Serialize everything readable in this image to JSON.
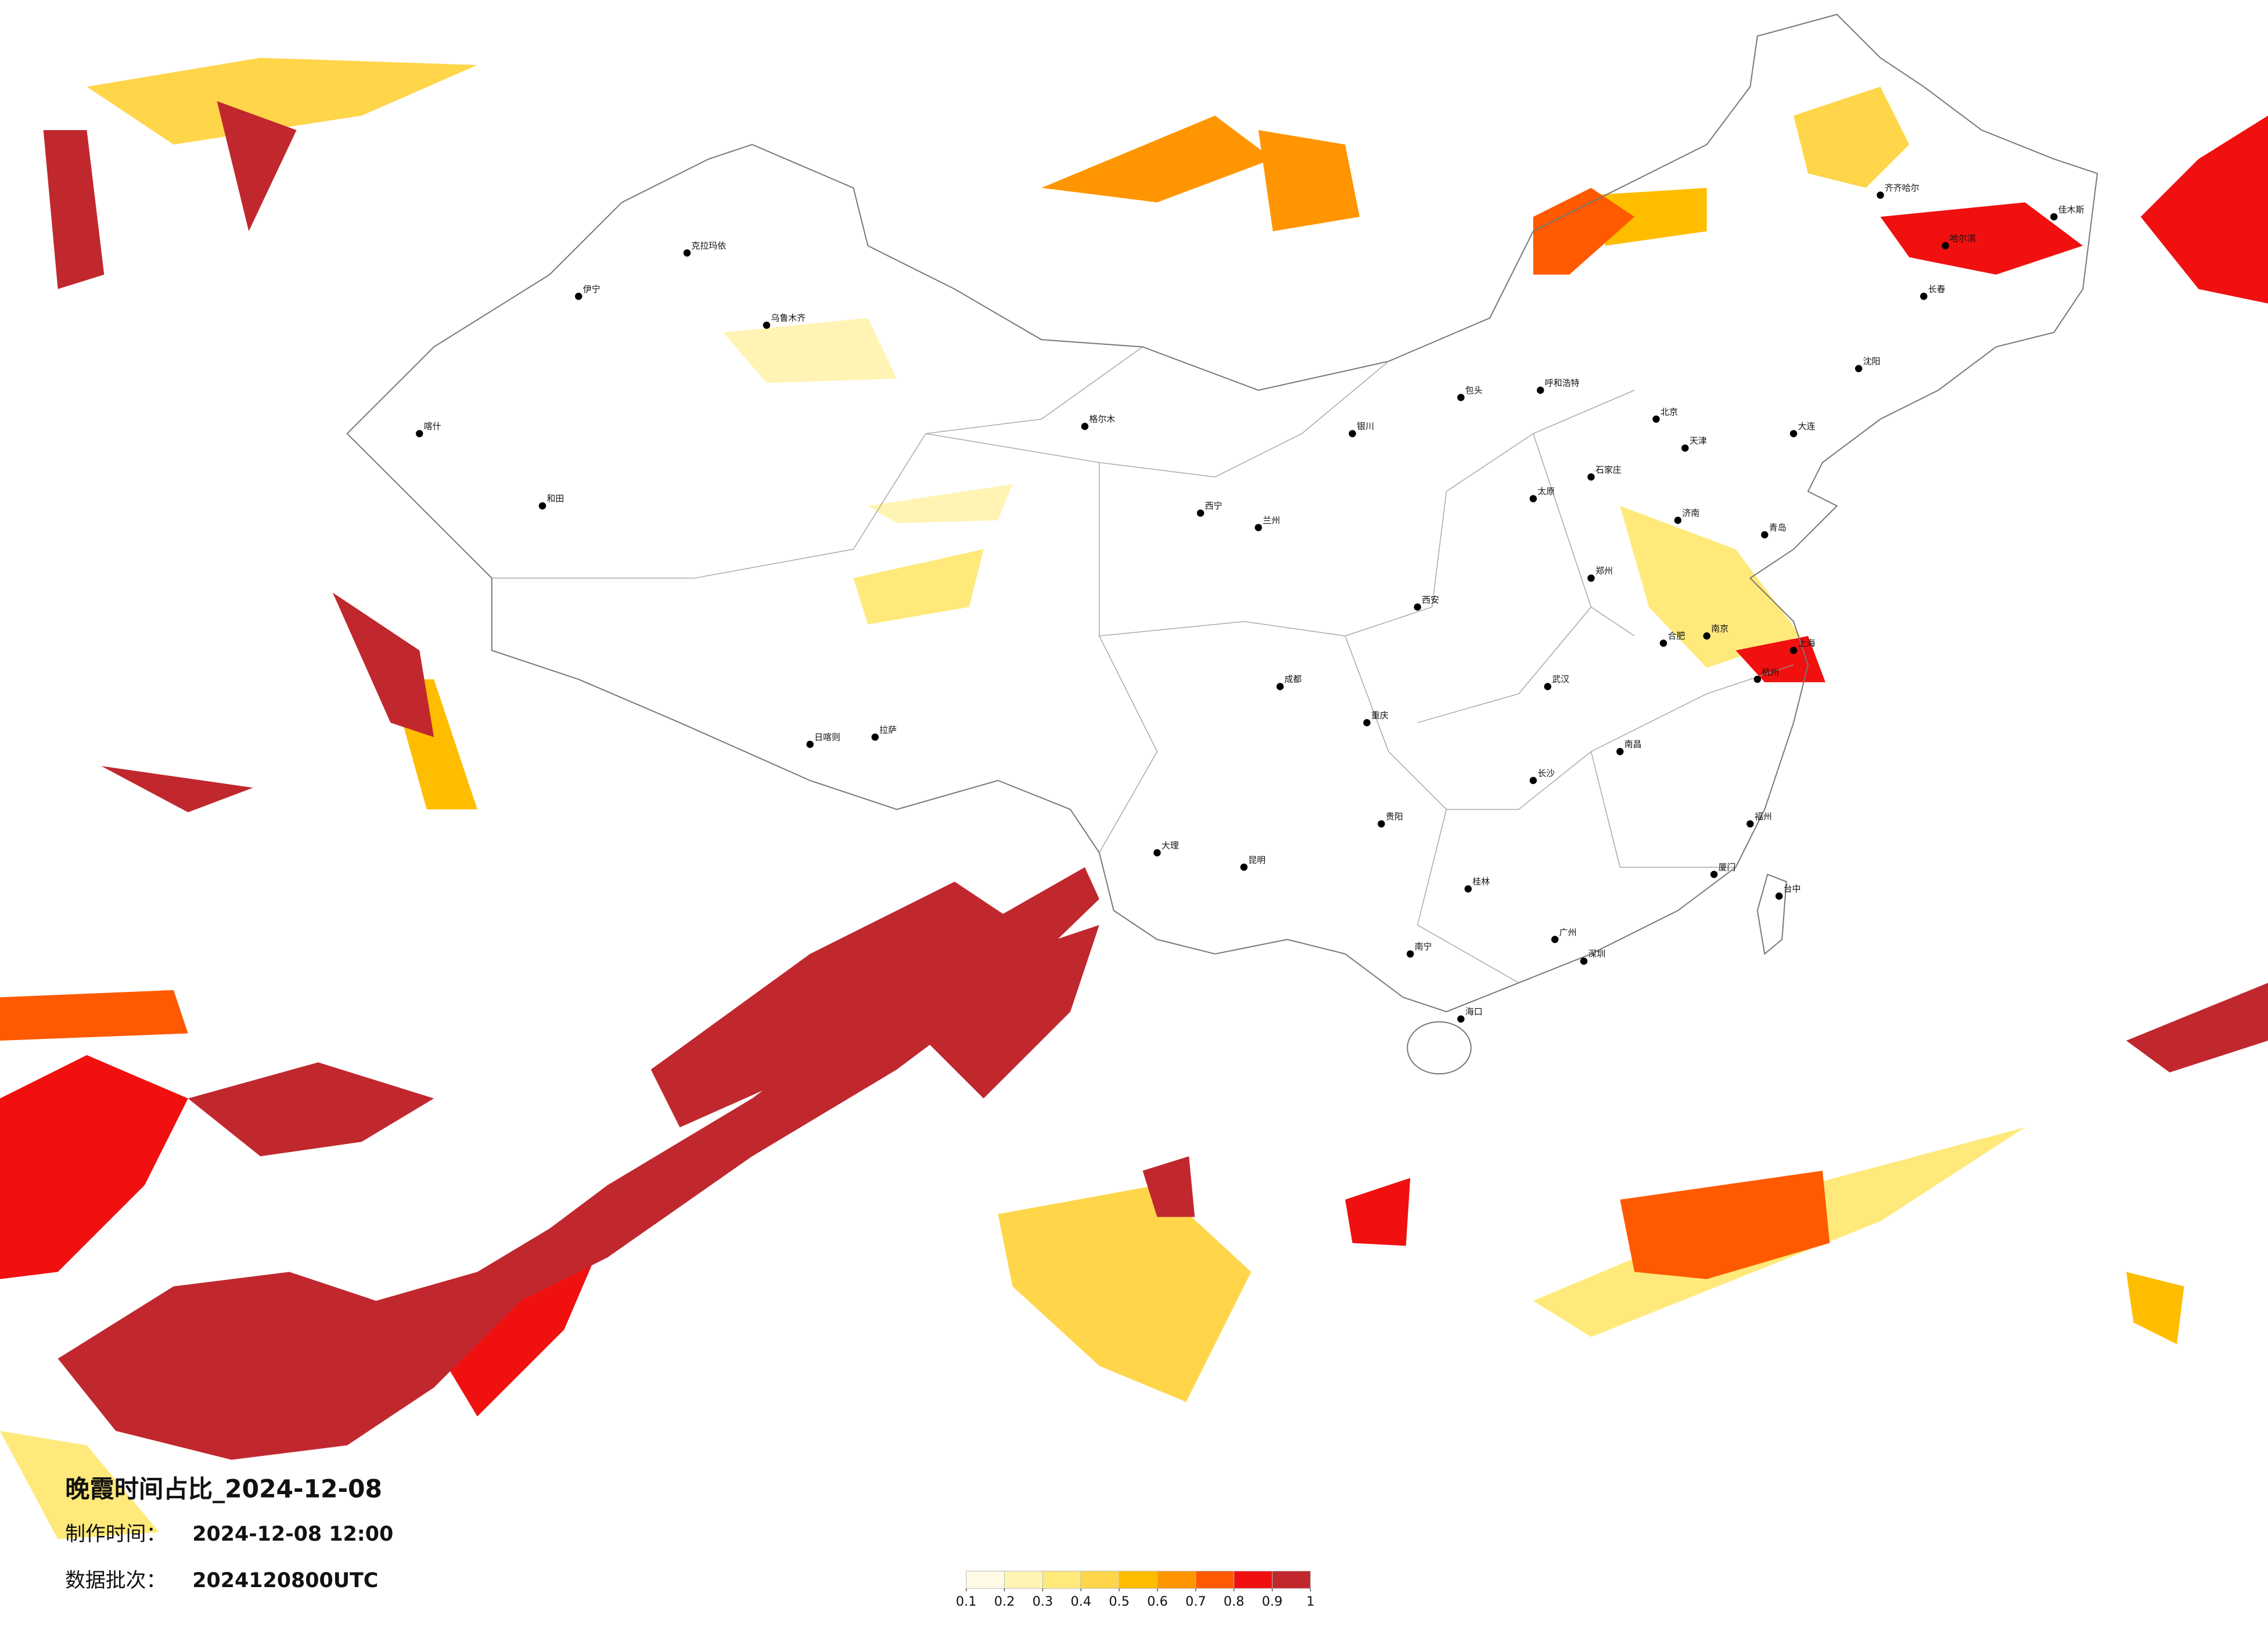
{
  "title": "晚霞时间占比_2024-12-08",
  "made_time": {
    "label": "制作时间：",
    "value": "2024-12-08 12:00"
  },
  "batch": {
    "label": "数据批次：",
    "value": "2024120800UTC"
  },
  "legend": {
    "colors": [
      "#fffbe6",
      "#fff4b3",
      "#ffe97a",
      "#ffd54a",
      "#ffbd00",
      "#ff9500",
      "#ff5a00",
      "#f01010",
      "#c0282e"
    ],
    "ticks": [
      0.1,
      0.2,
      0.3,
      0.4,
      0.5,
      0.6,
      0.7,
      0.8,
      0.9,
      1
    ]
  },
  "cities": [
    "哈尔滨",
    "长春",
    "沈阳",
    "大连",
    "北京",
    "天津",
    "石家庄",
    "太原",
    "呼和浩特",
    "包头",
    "银川",
    "兰州",
    "西宁",
    "拉萨",
    "乌鲁木齐",
    "喀什",
    "和田",
    "伊宁",
    "克拉玛依",
    "格尔木",
    "日喀则",
    "郑州",
    "济南",
    "青岛",
    "南京",
    "上海",
    "杭州",
    "合肥",
    "武汉",
    "长沙",
    "南昌",
    "福州",
    "厦门",
    "广州",
    "深圳",
    "南宁",
    "海口",
    "桂林",
    "贵阳",
    "昆明",
    "大理",
    "重庆",
    "成都",
    "西安",
    "台中",
    "齐齐哈尔",
    "佳木斯"
  ]
}
